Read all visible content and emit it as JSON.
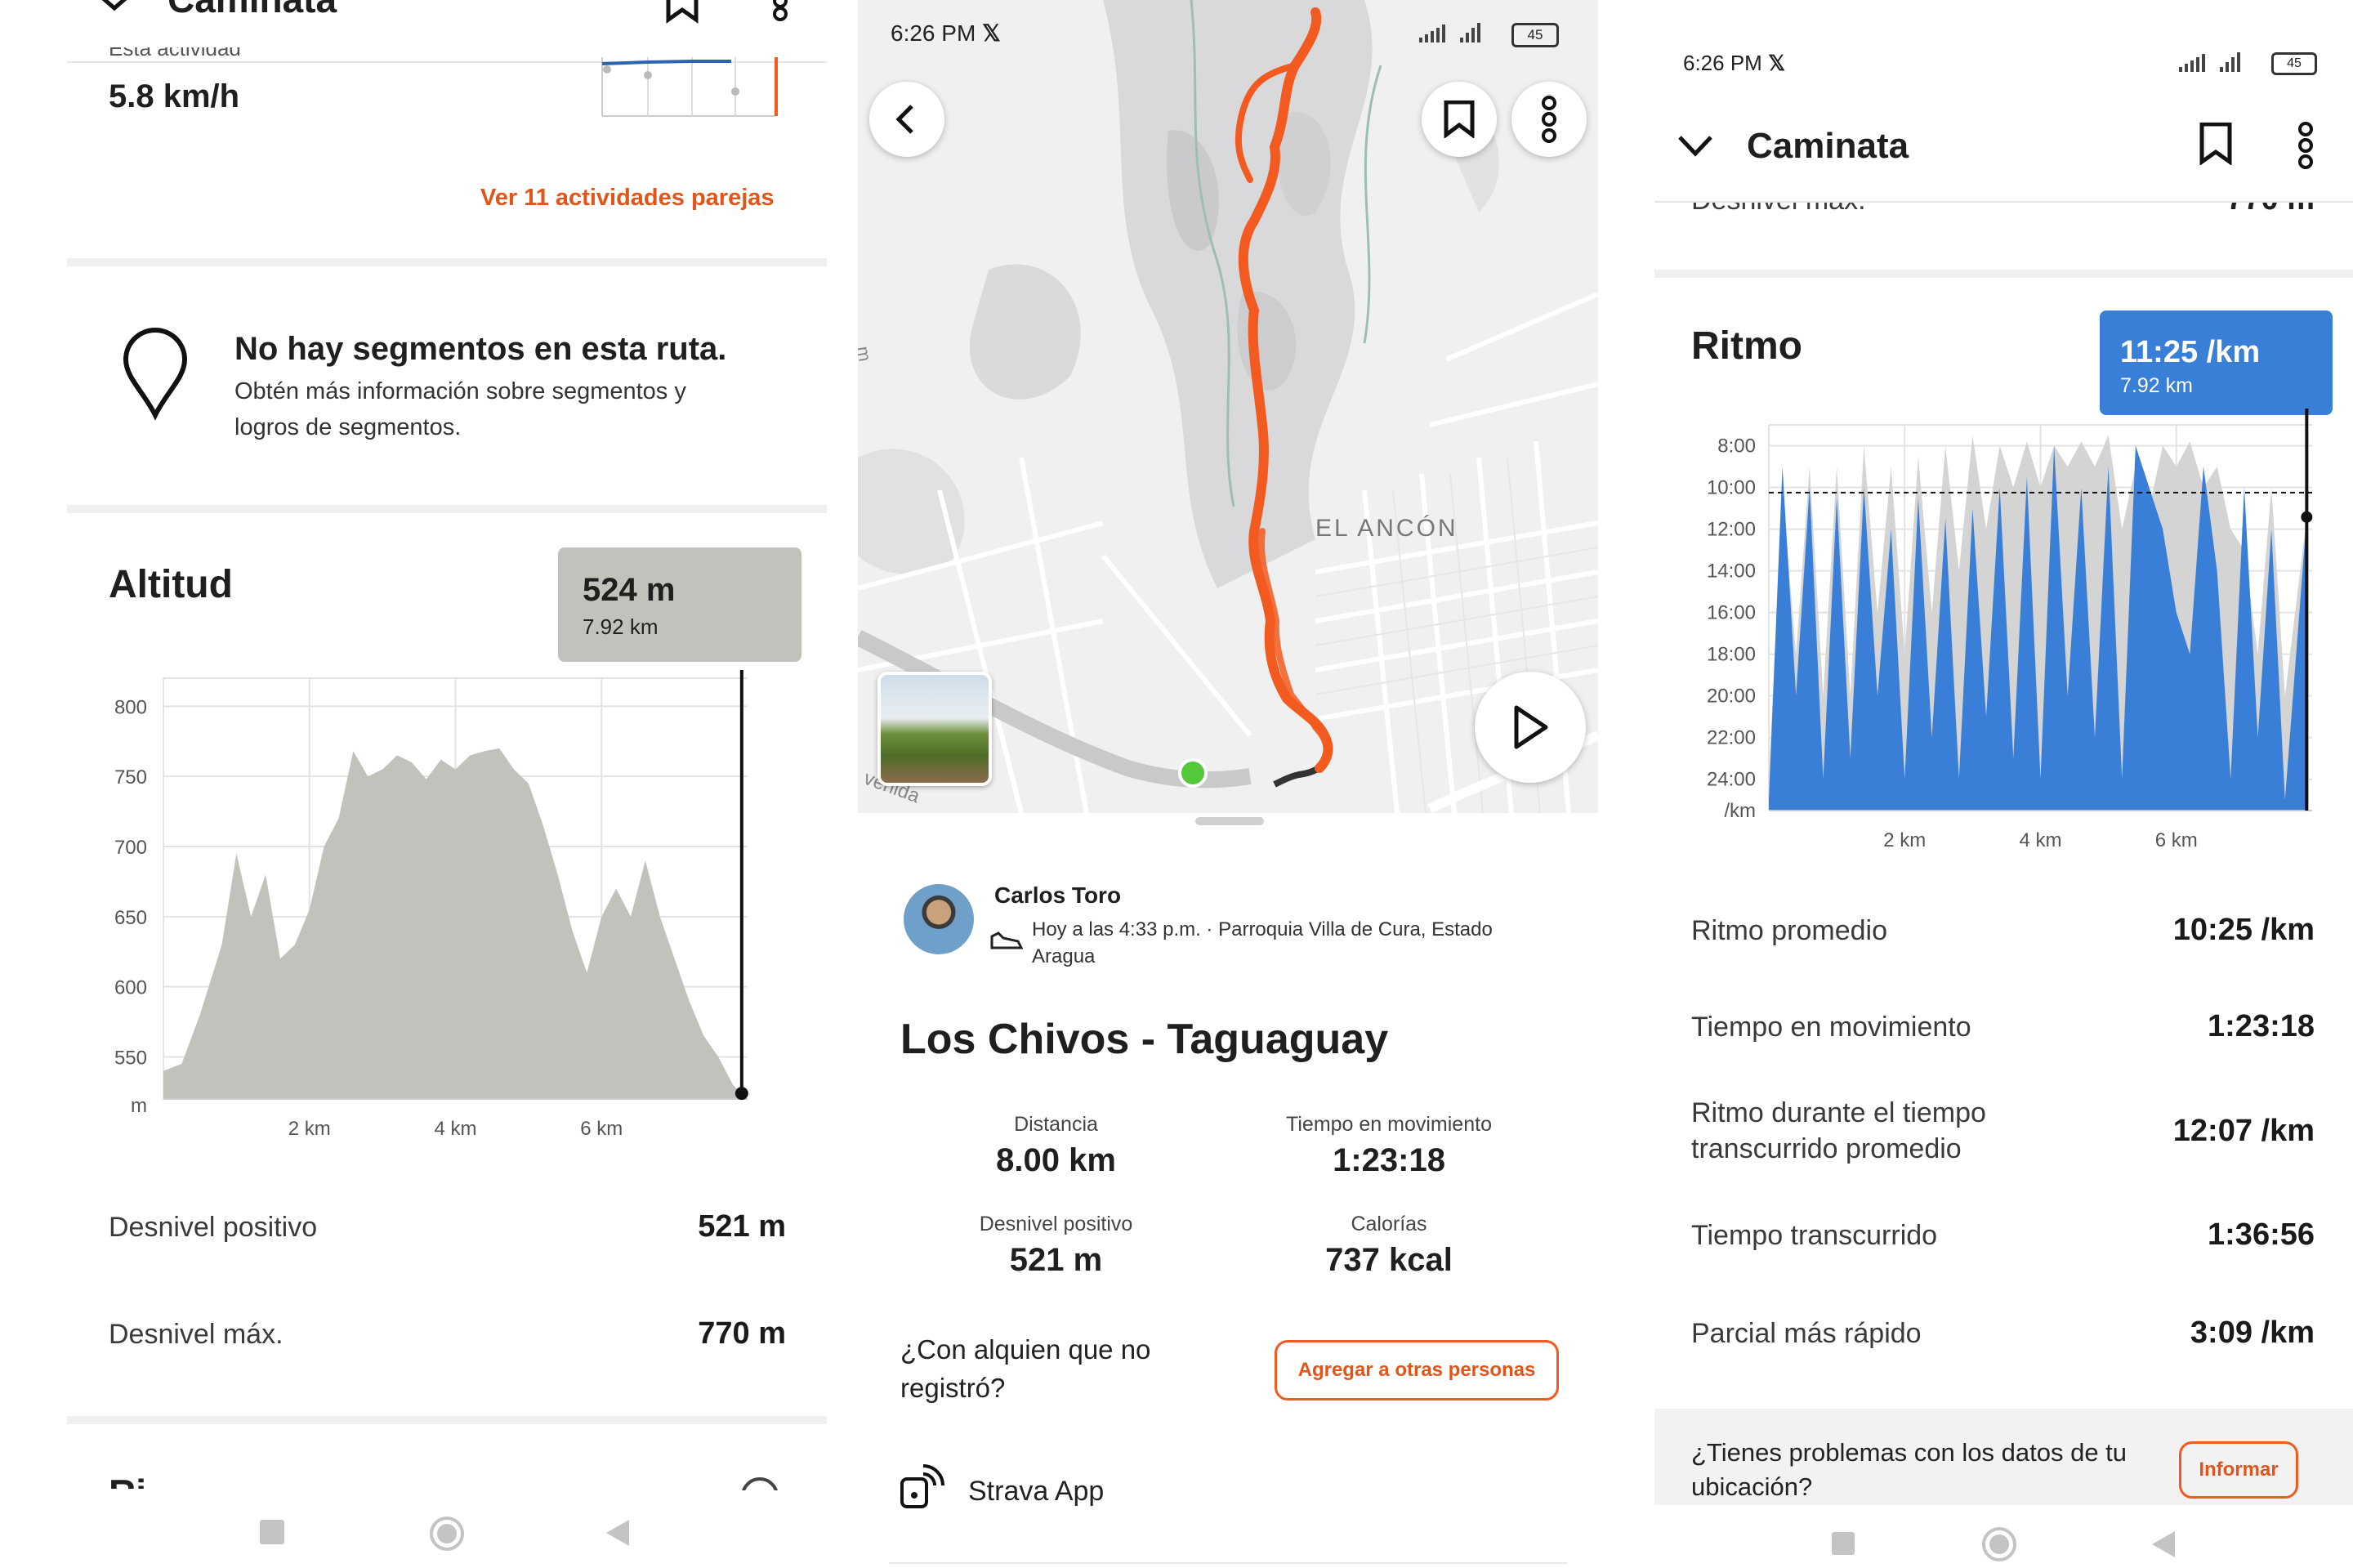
{
  "left": {
    "header_title": "Caminata",
    "cut_label": "Esta actividad",
    "speed_value": "5.8 km/h",
    "similar_link": "Ver 11 actividades parejas",
    "segments_title": "No hay segmentos en esta ruta.",
    "segments_desc_line1": "Obtén más información sobre segmentos y",
    "segments_desc_line2": "logros de segmentos.",
    "altitude_title": "Altitud",
    "tooltip_value": "524 m",
    "tooltip_distance": "7.92 km",
    "y_ticks": [
      "800",
      "750",
      "700",
      "650",
      "600",
      "550",
      "m"
    ],
    "x_ticks": [
      "2 km",
      "4 km",
      "6 km"
    ],
    "stats": [
      {
        "label": "Desnivel positivo",
        "value": "521 m"
      },
      {
        "label": "Desnivel máx.",
        "value": "770 m"
      }
    ],
    "next_section_cut": "Ri"
  },
  "middle": {
    "status_time": "6:26 PM",
    "status_x": "𝕏",
    "battery": "45",
    "map_label_town": "EL ANCÓN",
    "map_label_road": "venida",
    "map_label_side": "m",
    "athlete_name": "Carlos Toro",
    "activity_meta_line1": "Hoy a las 4:33 p.m. · Parroquia Villa de Cura, Estado",
    "activity_meta_line2": "Aragua",
    "activity_title": "Los Chivos - Taguaguay",
    "stats": [
      {
        "label": "Distancia",
        "value": "8.00 km"
      },
      {
        "label": "Tiempo en movimiento",
        "value": "1:23:18"
      },
      {
        "label": "Desnivel positivo",
        "value": "521 m"
      },
      {
        "label": "Calorías",
        "value": "737 kcal"
      }
    ],
    "others_q_line1": "¿Con alquien que no",
    "others_q_line2": "registró?",
    "others_button": "Agregar a otras personas",
    "device_label": "Strava App"
  },
  "right": {
    "status_time": "6:26 PM",
    "status_x": "𝕏",
    "battery": "45",
    "header_title": "Caminata",
    "cut_row_label": "Desnivel máx.",
    "cut_row_value": "770 m",
    "pace_title": "Ritmo",
    "tooltip_value": "11:25 /km",
    "tooltip_distance": "7.92 km",
    "y_ticks": [
      "8:00",
      "10:00",
      "12:00",
      "14:00",
      "16:00",
      "18:00",
      "20:00",
      "22:00",
      "24:00",
      "/km"
    ],
    "x_ticks": [
      "2 km",
      "4 km",
      "6 km"
    ],
    "stats": [
      {
        "label": "Ritmo promedio",
        "value": "10:25 /km"
      },
      {
        "label": "Tiempo en movimiento",
        "value": "1:23:18"
      },
      {
        "label": "Ritmo durante el tiempo transcurrido promedio",
        "label_line1": "Ritmo durante el tiempo",
        "label_line2": "transcurrido promedio",
        "value": "12:07 /km"
      },
      {
        "label": "Tiempo transcurrido",
        "value": "1:36:56"
      },
      {
        "label": "Parcial más rápido",
        "value": "3:09 /km"
      }
    ],
    "report_q_line1": "¿Tienes problemas con los datos de tu",
    "report_q_line2": "ubicación?",
    "report_button": "Informar"
  },
  "chart_data": [
    {
      "type": "area",
      "title": "Altitud",
      "xlabel": "",
      "ylabel": "m",
      "ylim": [
        520,
        820
      ],
      "xlim": [
        0,
        8
      ],
      "x": [
        0,
        0.25,
        0.5,
        0.8,
        1.0,
        1.2,
        1.4,
        1.6,
        1.8,
        2.0,
        2.2,
        2.4,
        2.6,
        2.8,
        3.0,
        3.2,
        3.4,
        3.6,
        3.8,
        4.0,
        4.2,
        4.4,
        4.6,
        4.8,
        5.0,
        5.2,
        5.4,
        5.6,
        5.8,
        6.0,
        6.2,
        6.4,
        6.6,
        6.8,
        7.0,
        7.2,
        7.4,
        7.6,
        7.8,
        7.92
      ],
      "values": [
        540,
        545,
        580,
        630,
        695,
        650,
        680,
        620,
        630,
        655,
        700,
        720,
        768,
        750,
        755,
        765,
        760,
        748,
        762,
        755,
        765,
        768,
        770,
        755,
        745,
        715,
        680,
        640,
        610,
        650,
        670,
        650,
        690,
        650,
        620,
        590,
        565,
        550,
        530,
        524
      ],
      "marker": {
        "x": 7.92,
        "value": 524
      }
    },
    {
      "type": "area",
      "title": "Ritmo",
      "xlabel": "",
      "ylabel": "/km",
      "ylim": [
        25.5,
        7
      ],
      "xlim": [
        0,
        8
      ],
      "reference_line": 10.25,
      "series": [
        {
          "values": [
            25,
            9,
            20,
            10,
            24,
            10.5,
            23,
            10,
            20,
            12,
            24,
            10.5,
            22,
            11.5,
            24,
            11,
            21,
            10,
            23,
            9.5,
            24,
            8,
            20,
            10,
            22,
            9,
            24,
            8,
            10,
            12,
            16,
            18,
            9,
            14,
            24,
            10,
            22,
            12,
            25,
            11.4
          ]
        },
        {
          "values": [
            24,
            10,
            18,
            9,
            20,
            9,
            20,
            8,
            16,
            9,
            18,
            8.5,
            16,
            8,
            14,
            7.5,
            12,
            8,
            10,
            7.8,
            10,
            8,
            9,
            7.8,
            9,
            7.5,
            12,
            9,
            11,
            8,
            9,
            7.8,
            10,
            9,
            12,
            13,
            18,
            10,
            20,
            11.4
          ]
        }
      ],
      "x": [
        0,
        0.2,
        0.4,
        0.6,
        0.8,
        1.0,
        1.2,
        1.4,
        1.6,
        1.8,
        2.0,
        2.2,
        2.4,
        2.6,
        2.8,
        3.0,
        3.2,
        3.4,
        3.6,
        3.8,
        4.0,
        4.2,
        4.4,
        4.6,
        4.8,
        5.0,
        5.2,
        5.4,
        5.6,
        5.8,
        6.0,
        6.2,
        6.4,
        6.6,
        6.8,
        7.0,
        7.2,
        7.4,
        7.6,
        7.92
      ],
      "marker": {
        "x": 7.92,
        "value": 11.42
      }
    }
  ]
}
